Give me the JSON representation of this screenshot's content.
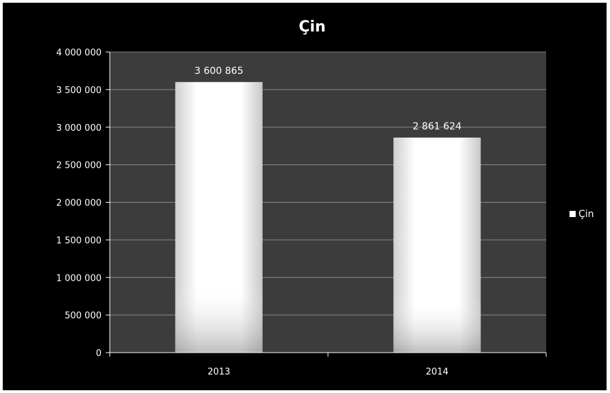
{
  "chart_data": {
    "type": "bar",
    "title": "Çin",
    "categories": [
      "2013",
      "2014"
    ],
    "series": [
      {
        "name": "Çin",
        "values": [
          3600865,
          2861624
        ]
      }
    ],
    "data_labels": [
      "3 600 865",
      "2 861 624"
    ],
    "ylim": [
      0,
      4000000
    ],
    "y_ticks": [
      0,
      500000,
      1000000,
      1500000,
      2000000,
      2500000,
      3000000,
      3500000,
      4000000
    ],
    "y_tick_labels": [
      "0",
      "500 000",
      "1 000 000",
      "1 500 000",
      "2 000 000",
      "2 500 000",
      "3 000 000",
      "3 500 000",
      "4 000 000"
    ],
    "grid": true,
    "legend": "right",
    "colors": {
      "background": "#000000",
      "plot_area": "#3c3c3c",
      "gridline": "#8a8a8a",
      "bar": "#ffffff",
      "text": "#ffffff"
    }
  }
}
